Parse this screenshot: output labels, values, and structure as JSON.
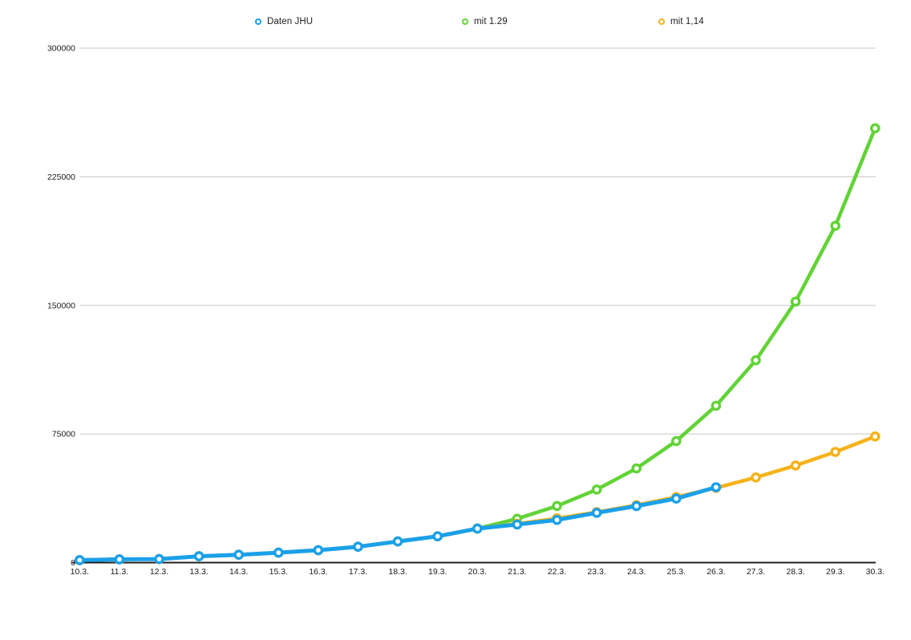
{
  "chart_data": {
    "type": "line",
    "title": "",
    "xlabel": "",
    "ylabel": "",
    "x": [
      "10.3.",
      "11.3.",
      "12.3.",
      "13.3.",
      "14.3.",
      "15.3.",
      "16.3.",
      "17.3.",
      "18.3.",
      "19.3.",
      "20.3.",
      "21.3.",
      "22.3.",
      "23.3.",
      "24.3.",
      "25.3.",
      "26.3.",
      "27.3.",
      "28.3.",
      "29.3.",
      "30.3."
    ],
    "series": [
      {
        "name": "Daten JHU",
        "color": "#1BA0E9",
        "marker": "ring",
        "values": [
          1457,
          1908,
          2078,
          3675,
          4585,
          5795,
          7272,
          9257,
          12327,
          15320,
          19848,
          22213,
          24873,
          29056,
          32986,
          37323,
          43938
        ]
      },
      {
        "name": "mit 1.29",
        "color": "#61D336",
        "marker": "ring",
        "values": [
          1457,
          1908,
          2078,
          3675,
          4585,
          5795,
          7272,
          9257,
          12327,
          15320,
          19848,
          25604,
          33029,
          42608,
          54964,
          70903,
          91465,
          117990,
          152207,
          196347,
          253288
        ]
      },
      {
        "name": "mit 1,14",
        "color": "#F6B219",
        "marker": "ring",
        "values": [
          1457,
          1908,
          2078,
          3675,
          4585,
          5795,
          7272,
          9257,
          12327,
          15320,
          19848,
          22627,
          25795,
          29406,
          33523,
          38216,
          43566,
          49665,
          56618,
          64545,
          73581
        ]
      }
    ],
    "ylim": [
      0,
      300000
    ],
    "yticks": [
      0,
      75000,
      150000,
      225000,
      300000
    ],
    "grid": true,
    "legend_position": "top"
  },
  "legend": {
    "items": [
      {
        "label": "Daten JHU",
        "color": "#1BA0E9"
      },
      {
        "label": "mit 1.29",
        "color": "#61D336"
      },
      {
        "label": "mit 1,14",
        "color": "#F6B219"
      }
    ]
  },
  "colors": {
    "background": "#FFFFFF",
    "gridline": "#C8C8C8",
    "axis_line": "#1F1F1F",
    "tick_label": "#1C1C1C"
  }
}
